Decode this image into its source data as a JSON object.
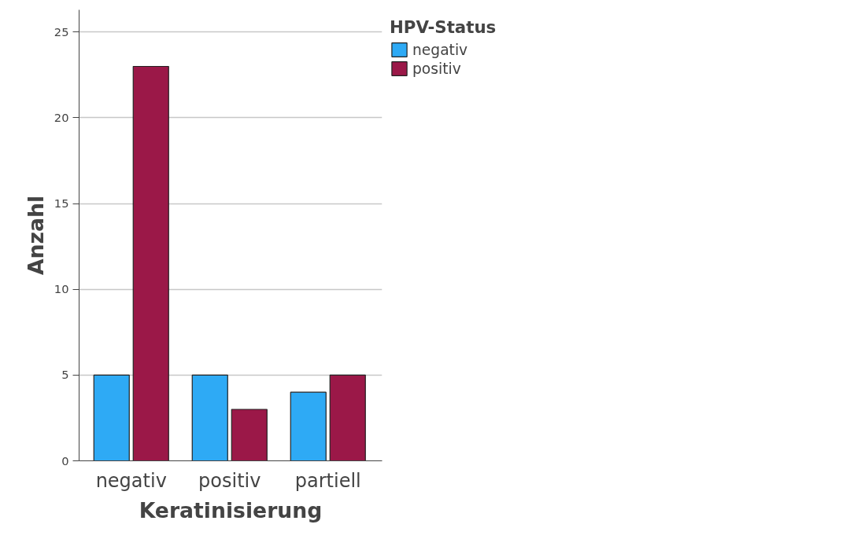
{
  "chart_data": {
    "type": "bar",
    "xlabel": "Keratinisierung",
    "ylabel": "Anzahl",
    "legend_title": "HPV-Status",
    "categories": [
      "negativ",
      "positiv",
      "partiell"
    ],
    "series": [
      {
        "name": "negativ",
        "color": "#2eaaf5",
        "values": [
          5,
          5,
          4
        ]
      },
      {
        "name": "positiv",
        "color": "#9b1848",
        "values": [
          23,
          3,
          5
        ]
      }
    ],
    "ylim": [
      0,
      26.3
    ],
    "yticks": [
      0,
      5,
      10,
      15,
      20,
      25
    ],
    "grid": "y",
    "legend": "top right"
  }
}
